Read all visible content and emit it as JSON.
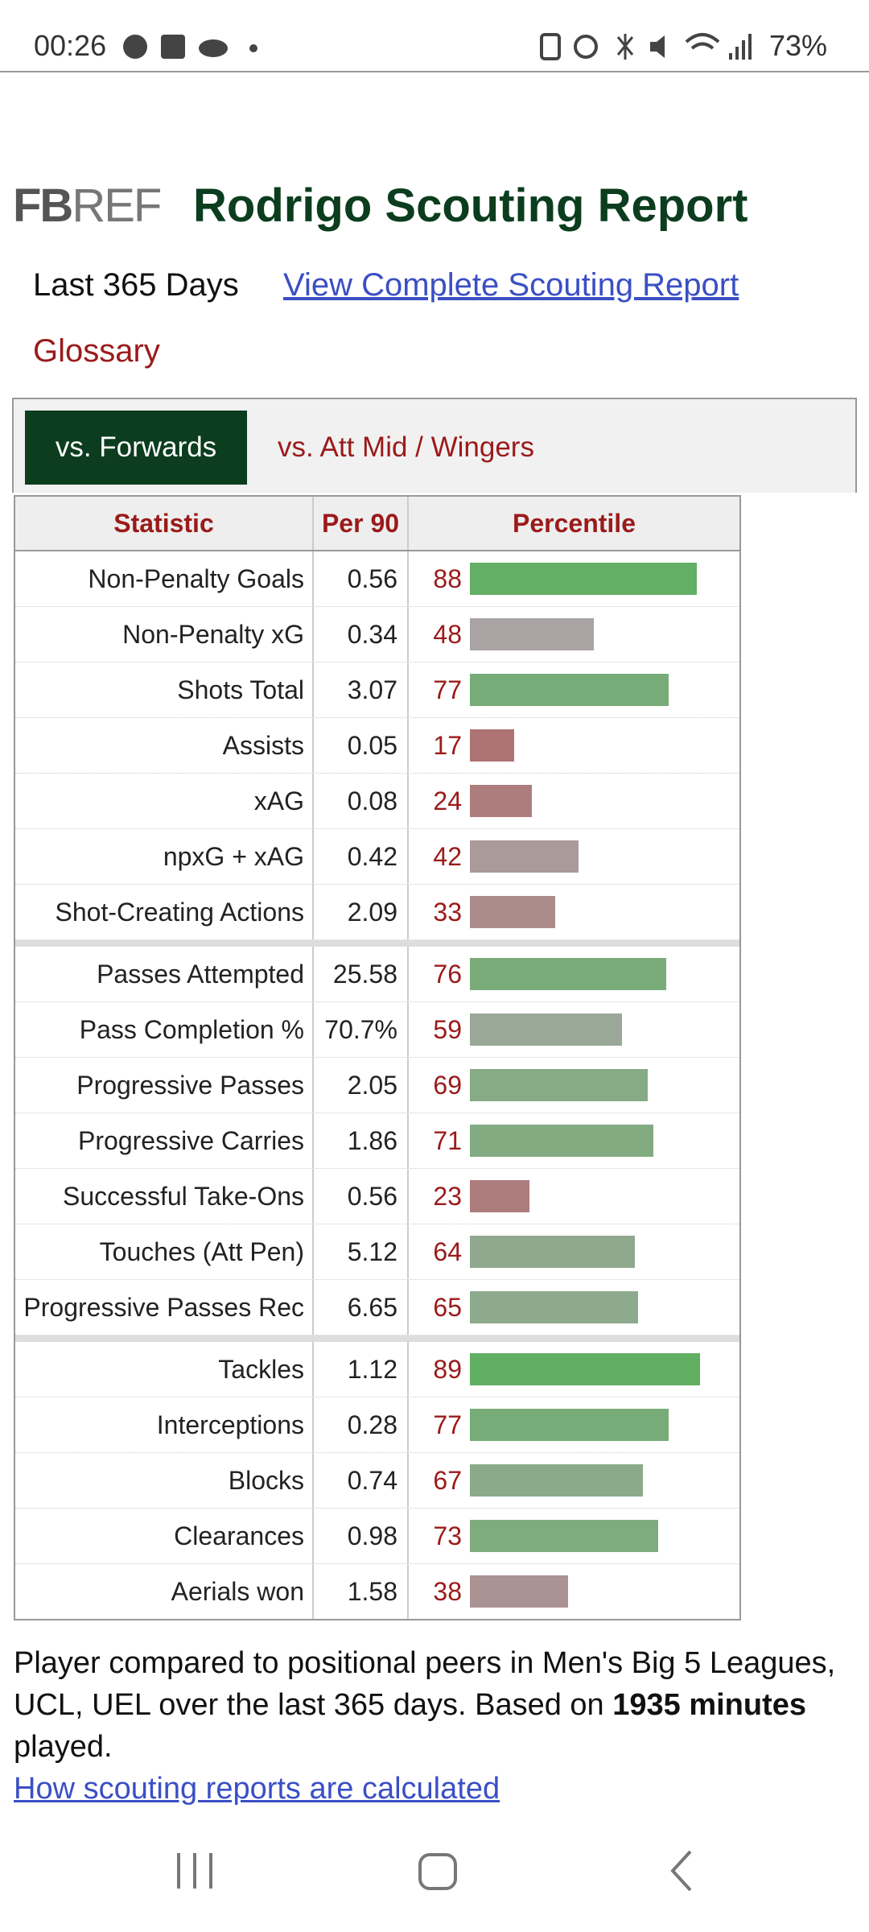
{
  "status_bar": {
    "time": "00:26",
    "battery": "73%"
  },
  "header": {
    "logo": [
      "FB",
      "REF"
    ],
    "title": "Rodrigo Scouting Report"
  },
  "links": {
    "period": "Last 365 Days",
    "complete_report": "View Complete Scouting Report",
    "glossary": "Glossary"
  },
  "tabs": [
    "vs. Forwards",
    "vs. Att Mid / Wingers"
  ],
  "table": {
    "columns": [
      "Statistic",
      "Per 90",
      "Percentile"
    ],
    "groups": [
      [
        [
          "Non-Penalty Goals",
          0.56,
          88
        ],
        [
          "Non-Penalty xG",
          0.34,
          48
        ],
        [
          "Shots Total",
          3.07,
          77
        ],
        [
          "Assists",
          0.05,
          17
        ],
        [
          "xAG",
          0.08,
          24
        ],
        [
          "npxG + xAG",
          0.42,
          42
        ],
        [
          "Shot-Creating Actions",
          2.09,
          33
        ]
      ],
      [
        [
          "Passes Attempted",
          25.58,
          76
        ],
        [
          "Pass Completion %",
          "70.7%",
          59
        ],
        [
          "Progressive Passes",
          2.05,
          69
        ],
        [
          "Progressive Carries",
          1.86,
          71
        ],
        [
          "Successful Take-Ons",
          0.56,
          23
        ],
        [
          "Touches (Att Pen)",
          5.12,
          64
        ],
        [
          "Progressive Passes Rec",
          6.65,
          65
        ]
      ],
      [
        [
          "Tackles",
          1.12,
          89
        ],
        [
          "Interceptions",
          0.28,
          77
        ],
        [
          "Blocks",
          0.74,
          67
        ],
        [
          "Clearances",
          0.98,
          73
        ],
        [
          "Aerials won",
          1.58,
          38
        ]
      ]
    ]
  },
  "footer": {
    "text_before": "Player compared to positional peers in Men's Big 5 Leagues, UCL, UEL over the last 365 days. Based on",
    "minutes": "1935 minutes",
    "text_after": "played.",
    "link": "How scouting reports are calculated"
  }
}
